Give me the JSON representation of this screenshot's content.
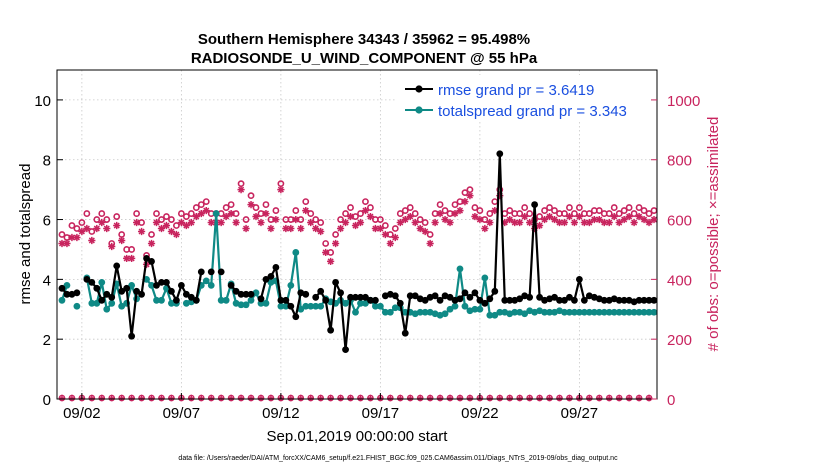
{
  "chart_data": {
    "type": "line",
    "title": "Southern Hemisphere 34343 / 35962 = 95.498%",
    "subtitle": "RADIOSONDE_U_WIND_COMPONENT @ 55 hPa",
    "xlabel": "Sep.01,2019 00:00:00 start",
    "ylabel_left": "rmse and totalspread",
    "ylabel_right": "# of obs: o=possible; ×=assimilated",
    "footer": "data file: /Users/raeder/DAI/ATM_forcXX/CAM6_setup/f.e21.FHIST_BGC.f09_025.CAM6assim.011/Diags_NTrS_2019-09/obs_diag_output.nc",
    "xlim": [
      0.75,
      30.9
    ],
    "ylim_left": [
      0,
      11
    ],
    "ylim_right": [
      0,
      1100
    ],
    "x_ticks": [
      {
        "x": 2,
        "label": "09/02"
      },
      {
        "x": 7,
        "label": "09/07"
      },
      {
        "x": 12,
        "label": "09/12"
      },
      {
        "x": 17,
        "label": "09/17"
      },
      {
        "x": 22,
        "label": "09/22"
      },
      {
        "x": 27,
        "label": "09/27"
      }
    ],
    "y_ticks_left": [
      0,
      2,
      4,
      6,
      8,
      10
    ],
    "y_ticks_right": [
      0,
      200,
      400,
      600,
      800,
      1000
    ],
    "x": [
      1.0,
      1.25,
      1.5,
      1.75,
      2.0,
      2.25,
      2.5,
      2.75,
      3.0,
      3.25,
      3.5,
      3.75,
      4.0,
      4.25,
      4.5,
      4.75,
      5.0,
      5.25,
      5.5,
      5.75,
      6.0,
      6.25,
      6.5,
      6.75,
      7.0,
      7.25,
      7.5,
      7.75,
      8.0,
      8.25,
      8.5,
      8.75,
      9.0,
      9.25,
      9.5,
      9.75,
      10.0,
      10.25,
      10.5,
      10.75,
      11.0,
      11.25,
      11.5,
      11.75,
      12.0,
      12.25,
      12.5,
      12.75,
      13.0,
      13.25,
      13.5,
      13.75,
      14.0,
      14.25,
      14.5,
      14.75,
      15.0,
      15.25,
      15.5,
      15.75,
      16.0,
      16.25,
      16.5,
      16.75,
      17.0,
      17.25,
      17.5,
      17.75,
      18.0,
      18.25,
      18.5,
      18.75,
      19.0,
      19.25,
      19.5,
      19.75,
      20.0,
      20.25,
      20.5,
      20.75,
      21.0,
      21.25,
      21.5,
      21.75,
      22.0,
      22.25,
      22.5,
      22.75,
      23.0,
      23.25,
      23.5,
      23.75,
      24.0,
      24.25,
      24.5,
      24.75,
      25.0,
      25.25,
      25.5,
      25.75,
      26.0,
      26.25,
      26.5,
      26.75,
      27.0,
      27.25,
      27.5,
      27.75,
      28.0,
      28.25,
      28.5,
      28.75,
      29.0,
      29.25,
      29.5,
      29.75,
      30.0,
      30.25,
      30.5,
      30.75
    ],
    "series": [
      {
        "name": "rmse grand pr = 3.6419",
        "axis": "left",
        "color": "#000000",
        "values": [
          3.7,
          3.5,
          3.5,
          3.55,
          null,
          4.0,
          3.9,
          3.7,
          3.3,
          3.5,
          3.4,
          4.45,
          3.6,
          3.7,
          2.1,
          3.6,
          3.5,
          4.7,
          4.6,
          3.8,
          3.9,
          3.9,
          3.6,
          3.3,
          3.8,
          3.5,
          3.4,
          3.3,
          4.25,
          null,
          4.25,
          null,
          4.25,
          null,
          3.8,
          3.6,
          3.5,
          3.5,
          3.5,
          null,
          3.35,
          4.0,
          4.1,
          4.4,
          3.3,
          3.3,
          3.1,
          2.75,
          3.55,
          3.5,
          null,
          3.4,
          3.6,
          3.3,
          2.3,
          3.9,
          3.55,
          1.65,
          3.4,
          3.4,
          3.4,
          3.4,
          3.3,
          3.3,
          null,
          3.45,
          3.5,
          3.45,
          3.2,
          2.2,
          3.45,
          3.45,
          3.35,
          3.3,
          3.4,
          3.45,
          3.3,
          3.45,
          3.4,
          3.3,
          3.35,
          3.55,
          3.4,
          3.55,
          3.3,
          3.2,
          3.35,
          3.6,
          8.2,
          3.3,
          3.3,
          3.3,
          3.35,
          3.45,
          3.4,
          6.5,
          3.4,
          3.3,
          3.35,
          3.4,
          3.3,
          3.3,
          3.4,
          3.3,
          4.0,
          3.3,
          3.45,
          3.4,
          3.35,
          3.3,
          3.3,
          3.35,
          3.3,
          3.3,
          3.3,
          3.25,
          3.3,
          3.3,
          3.3,
          3.3
        ]
      },
      {
        "name": "totalspread grand pr = 3.343",
        "axis": "left",
        "color": "#0f8a86",
        "values": [
          3.3,
          3.8,
          null,
          3.1,
          null,
          4.05,
          3.2,
          3.2,
          3.9,
          3.0,
          3.2,
          3.85,
          3.1,
          3.2,
          3.8,
          3.35,
          null,
          4.0,
          3.8,
          3.3,
          3.3,
          3.7,
          3.2,
          3.2,
          null,
          3.2,
          3.25,
          3.3,
          3.8,
          3.95,
          3.8,
          6.2,
          3.3,
          3.3,
          3.85,
          3.2,
          3.15,
          3.15,
          3.3,
          3.55,
          3.2,
          3.2,
          3.9,
          3.95,
          3.1,
          3.1,
          3.8,
          4.9,
          3.0,
          3.1,
          3.1,
          3.1,
          3.1,
          3.35,
          3.25,
          3.2,
          3.3,
          3.2,
          3.3,
          2.9,
          3.2,
          3.2,
          3.3,
          3.1,
          3.1,
          2.9,
          2.9,
          3.05,
          3.05,
          2.9,
          2.9,
          2.85,
          2.9,
          2.9,
          2.9,
          2.85,
          2.8,
          2.85,
          3.0,
          3.1,
          4.35,
          3.1,
          2.95,
          3.0,
          3.0,
          4.05,
          2.8,
          2.8,
          2.9,
          2.9,
          2.85,
          2.9,
          2.9,
          2.85,
          2.95,
          2.9,
          2.95,
          2.9,
          2.9,
          2.9,
          2.95,
          2.9,
          2.9,
          2.9,
          2.9,
          2.9,
          2.9,
          2.9,
          2.9,
          2.9,
          2.9,
          2.9,
          2.9,
          2.9,
          2.9,
          2.9,
          2.9,
          2.9,
          2.9,
          2.9
        ]
      },
      {
        "name": "possible",
        "axis": "right",
        "color": "#c8245e",
        "values": [
          550,
          540,
          580,
          570,
          590,
          620,
          560,
          600,
          620,
          600,
          520,
          610,
          550,
          500,
          500,
          620,
          590,
          480,
          550,
          620,
          600,
          610,
          600,
          580,
          620,
          610,
          620,
          640,
          650,
          660,
          620,
          620,
          620,
          640,
          650,
          620,
          720,
          600,
          680,
          640,
          620,
          650,
          600,
          630,
          720,
          600,
          600,
          630,
          600,
          660,
          620,
          600,
          590,
          520,
          490,
          550,
          600,
          620,
          640,
          610,
          620,
          660,
          640,
          600,
          600,
          580,
          550,
          570,
          620,
          630,
          640,
          620,
          600,
          590,
          550,
          620,
          650,
          630,
          620,
          650,
          660,
          690,
          700,
          640,
          630,
          600,
          620,
          660,
          700,
          620,
          630,
          620,
          620,
          640,
          620,
          600,
          610,
          630,
          640,
          630,
          620,
          620,
          640,
          620,
          640,
          620,
          620,
          630,
          630,
          620,
          620,
          640,
          620,
          630,
          640,
          620,
          640,
          630,
          620,
          630
        ]
      },
      {
        "name": "assimilated",
        "axis": "right",
        "color": "#c8245e",
        "values": [
          520,
          520,
          540,
          540,
          560,
          570,
          530,
          570,
          590,
          570,
          510,
          580,
          530,
          470,
          470,
          590,
          560,
          450,
          520,
          590,
          570,
          580,
          560,
          550,
          590,
          580,
          590,
          610,
          620,
          630,
          590,
          590,
          590,
          610,
          620,
          590,
          700,
          570,
          650,
          610,
          590,
          620,
          570,
          600,
          700,
          570,
          570,
          600,
          570,
          630,
          590,
          570,
          560,
          490,
          460,
          520,
          570,
          590,
          610,
          580,
          590,
          630,
          610,
          570,
          570,
          550,
          520,
          540,
          590,
          600,
          610,
          590,
          570,
          560,
          520,
          590,
          620,
          600,
          590,
          620,
          630,
          660,
          680,
          610,
          600,
          570,
          590,
          630,
          680,
          590,
          600,
          590,
          590,
          610,
          590,
          570,
          580,
          600,
          610,
          600,
          590,
          590,
          610,
          590,
          610,
          590,
          590,
          600,
          600,
          590,
          590,
          610,
          590,
          600,
          610,
          590,
          610,
          600,
          590,
          600
        ]
      }
    ]
  },
  "legend": {
    "position": "top-right",
    "rmse_label": "rmse grand pr = 3.6419",
    "spread_label": "totalspread grand pr = 3.343"
  }
}
